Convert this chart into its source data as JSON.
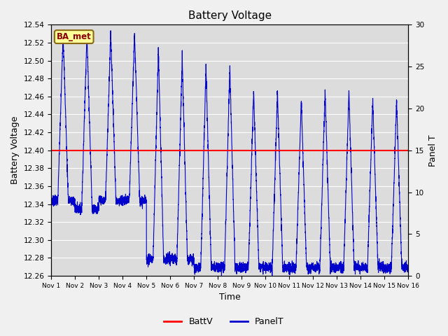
{
  "title": "Battery Voltage",
  "ylabel_left": "Battery Voltage",
  "ylabel_right": "Panel T",
  "xlabel": "Time",
  "ylim_left": [
    12.26,
    12.54
  ],
  "ylim_right": [
    0,
    30
  ],
  "batt_voltage": 12.4,
  "batt_color": "#ff0000",
  "panel_color": "#0000cd",
  "plot_bg": "#dcdcdc",
  "fig_bg": "#f0f0f0",
  "annotation_text": "BA_met",
  "annotation_bg": "#ffff99",
  "annotation_border": "#8B6914",
  "annotation_text_color": "#8B0000",
  "x_tick_labels": [
    "Nov 1",
    "Nov 2",
    "Nov 3",
    "Nov 4",
    "Nov 5",
    "Nov 6",
    "Nov 7",
    "Nov 8",
    "Nov 9",
    "Nov 10",
    "Nov 11",
    "Nov 12",
    "Nov 13",
    "Nov 14",
    "Nov 15",
    "Nov 16"
  ],
  "y_left_ticks": [
    12.26,
    12.28,
    12.3,
    12.32,
    12.34,
    12.36,
    12.38,
    12.4,
    12.42,
    12.44,
    12.46,
    12.48,
    12.5,
    12.52,
    12.54
  ],
  "y_right_ticks": [
    0,
    5,
    10,
    15,
    20,
    25,
    30
  ],
  "grid_color": "#ffffff",
  "num_days": 15
}
